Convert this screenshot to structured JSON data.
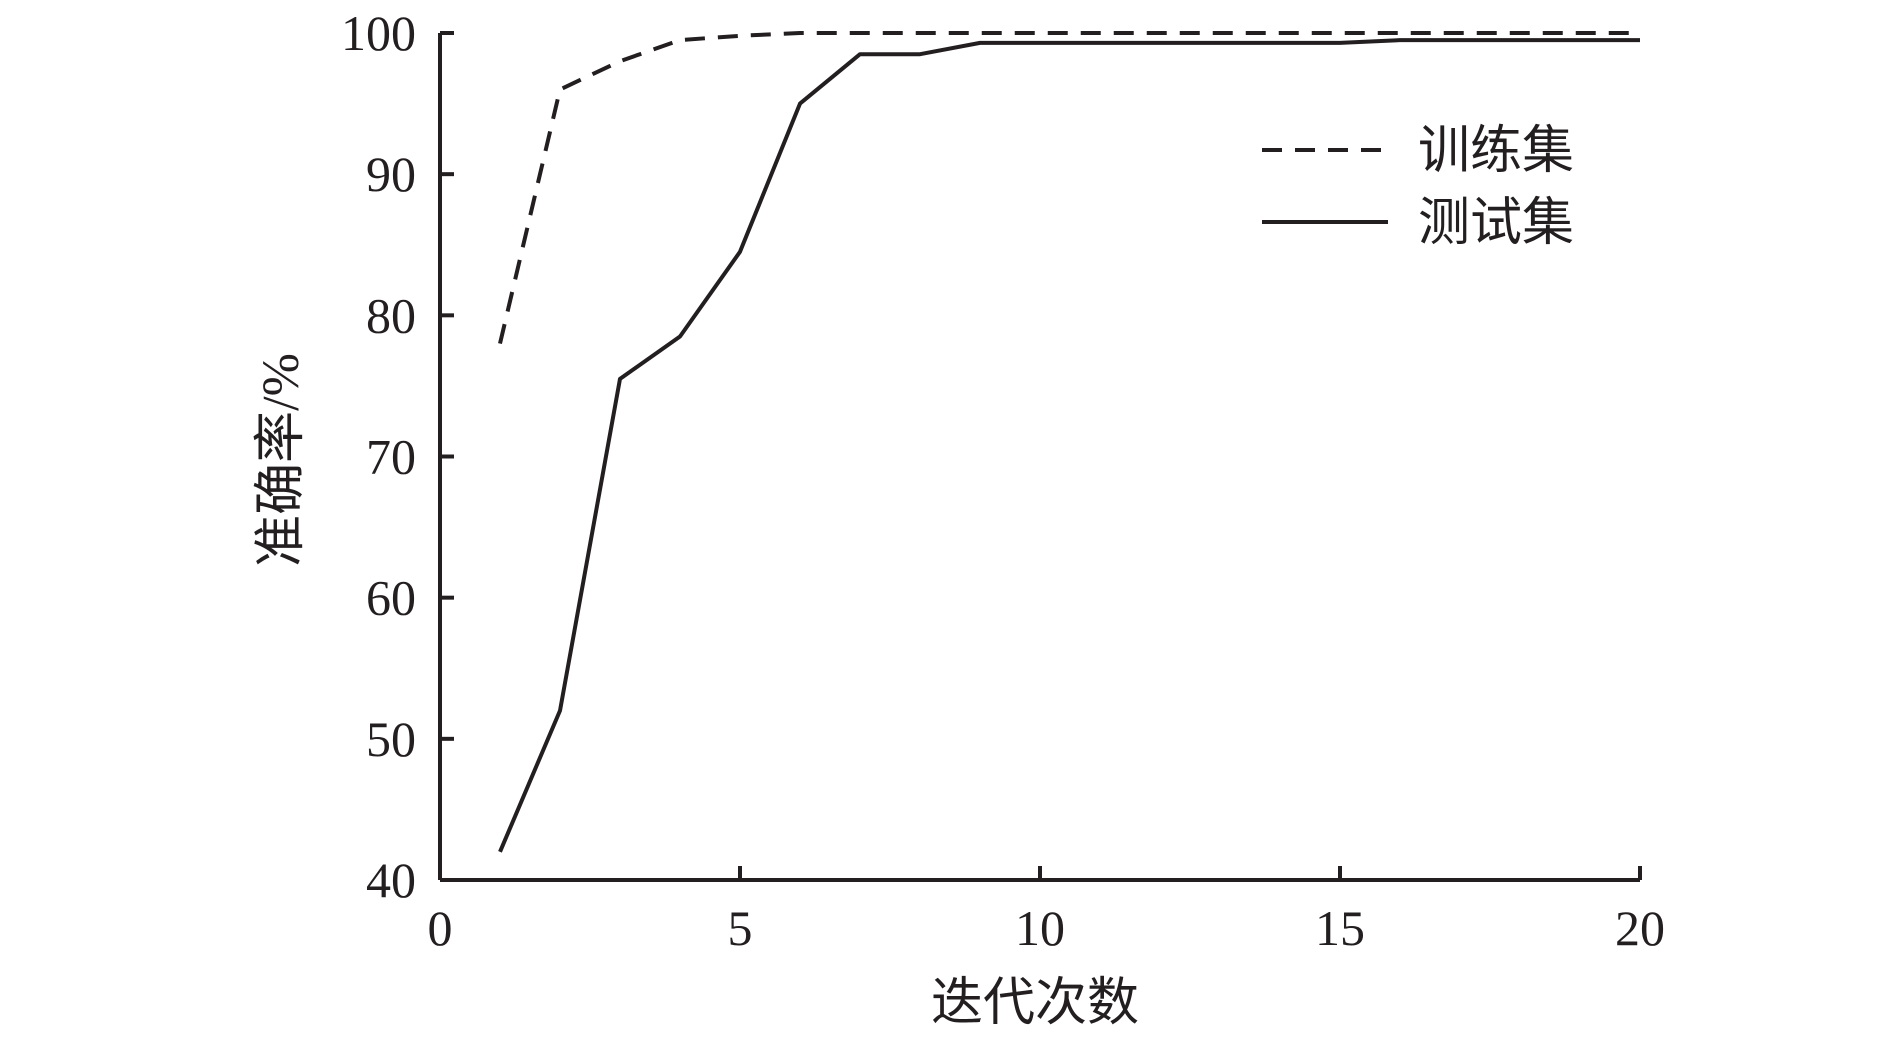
{
  "chart_data": {
    "type": "line",
    "title": "",
    "xlabel": "迭代次数",
    "ylabel": "准确率/%",
    "xlim": [
      0,
      20
    ],
    "ylim": [
      40,
      100
    ],
    "xticks": [
      0,
      5,
      10,
      15,
      20
    ],
    "yticks": [
      40,
      50,
      60,
      70,
      80,
      90,
      100
    ],
    "grid": false,
    "legend_position": "top-right",
    "series": [
      {
        "name": "训练集",
        "style": "dashed",
        "color": "#231f20",
        "x": [
          1,
          2,
          3,
          4,
          5,
          6,
          7,
          8,
          9,
          10,
          11,
          12,
          13,
          14,
          15,
          16,
          17,
          18,
          19,
          20
        ],
        "y": [
          78,
          96,
          98,
          99.5,
          99.8,
          100,
          100,
          100,
          100,
          100,
          100,
          100,
          100,
          100,
          100,
          100,
          100,
          100,
          100,
          100
        ]
      },
      {
        "name": "测试集",
        "style": "solid",
        "color": "#231f20",
        "x": [
          1,
          2,
          3,
          4,
          5,
          6,
          7,
          8,
          9,
          10,
          11,
          12,
          13,
          14,
          15,
          16,
          17,
          18,
          19,
          20
        ],
        "y": [
          42,
          52,
          75.5,
          78.5,
          84.5,
          95,
          98.5,
          98.5,
          99.3,
          99.3,
          99.3,
          99.3,
          99.3,
          99.3,
          99.3,
          99.5,
          99.5,
          99.5,
          99.5,
          99.5
        ]
      }
    ]
  }
}
